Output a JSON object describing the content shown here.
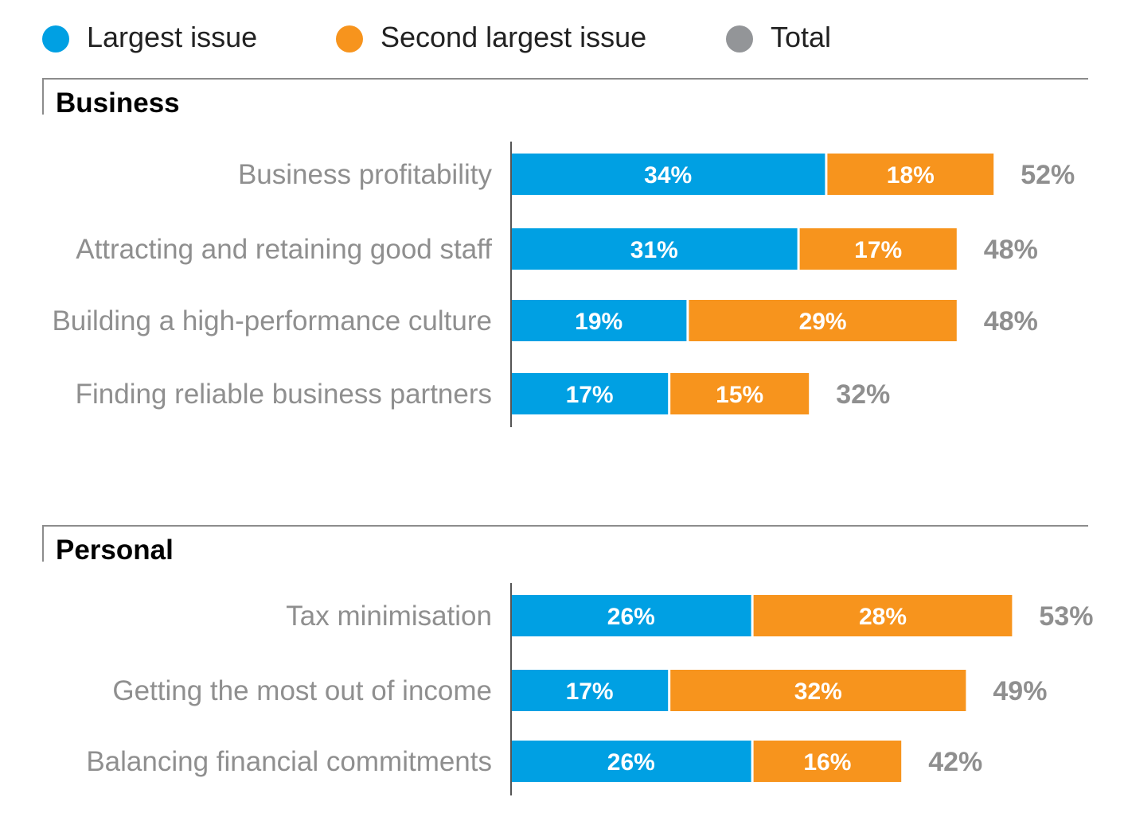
{
  "legend": [
    {
      "label": "Largest issue",
      "color": "#00a0e3"
    },
    {
      "label": "Second largest issue",
      "color": "#f7941d"
    },
    {
      "label": "Total",
      "color": "#939598"
    }
  ],
  "colors": {
    "accent": "#00a0e3",
    "largest": "#00a0e3",
    "second": "#f7941d",
    "total": "#939598",
    "axis": "#555555"
  },
  "chart_data": [
    {
      "type": "bar",
      "orientation": "horizontal",
      "stacked": true,
      "title": "Business",
      "categories": [
        "Business profitability",
        "Attracting and retaining good staff",
        "Building a high-performance culture",
        "Finding reliable business partners"
      ],
      "series": [
        {
          "name": "Largest issue",
          "values": [
            34,
            31,
            19,
            17
          ],
          "labels": [
            "34%",
            "31%",
            "19%",
            "17%"
          ]
        },
        {
          "name": "Second largest issue",
          "values": [
            18,
            17,
            29,
            15
          ],
          "labels": [
            "18%",
            "17%",
            "29%",
            "15%"
          ]
        }
      ],
      "totals": [
        52,
        48,
        48,
        32
      ],
      "total_labels": [
        "52%",
        "48%",
        "48%",
        "32%"
      ],
      "xlim": [
        0,
        55
      ],
      "unit": "%",
      "legend": "top"
    },
    {
      "type": "bar",
      "orientation": "horizontal",
      "stacked": true,
      "title": "Personal",
      "categories": [
        "Tax minimisation",
        "Getting the most out of income",
        "Balancing financial commitments"
      ],
      "series": [
        {
          "name": "Largest issue",
          "values": [
            26,
            17,
            26
          ],
          "labels": [
            "26%",
            "17%",
            "26%"
          ]
        },
        {
          "name": "Second largest issue",
          "values": [
            28,
            32,
            16
          ],
          "labels": [
            "28%",
            "32%",
            "16%"
          ]
        }
      ],
      "totals": [
        53,
        49,
        42
      ],
      "total_labels": [
        "53%",
        "49%",
        "42%"
      ],
      "xlim": [
        0,
        55
      ],
      "unit": "%",
      "legend": "top"
    }
  ]
}
